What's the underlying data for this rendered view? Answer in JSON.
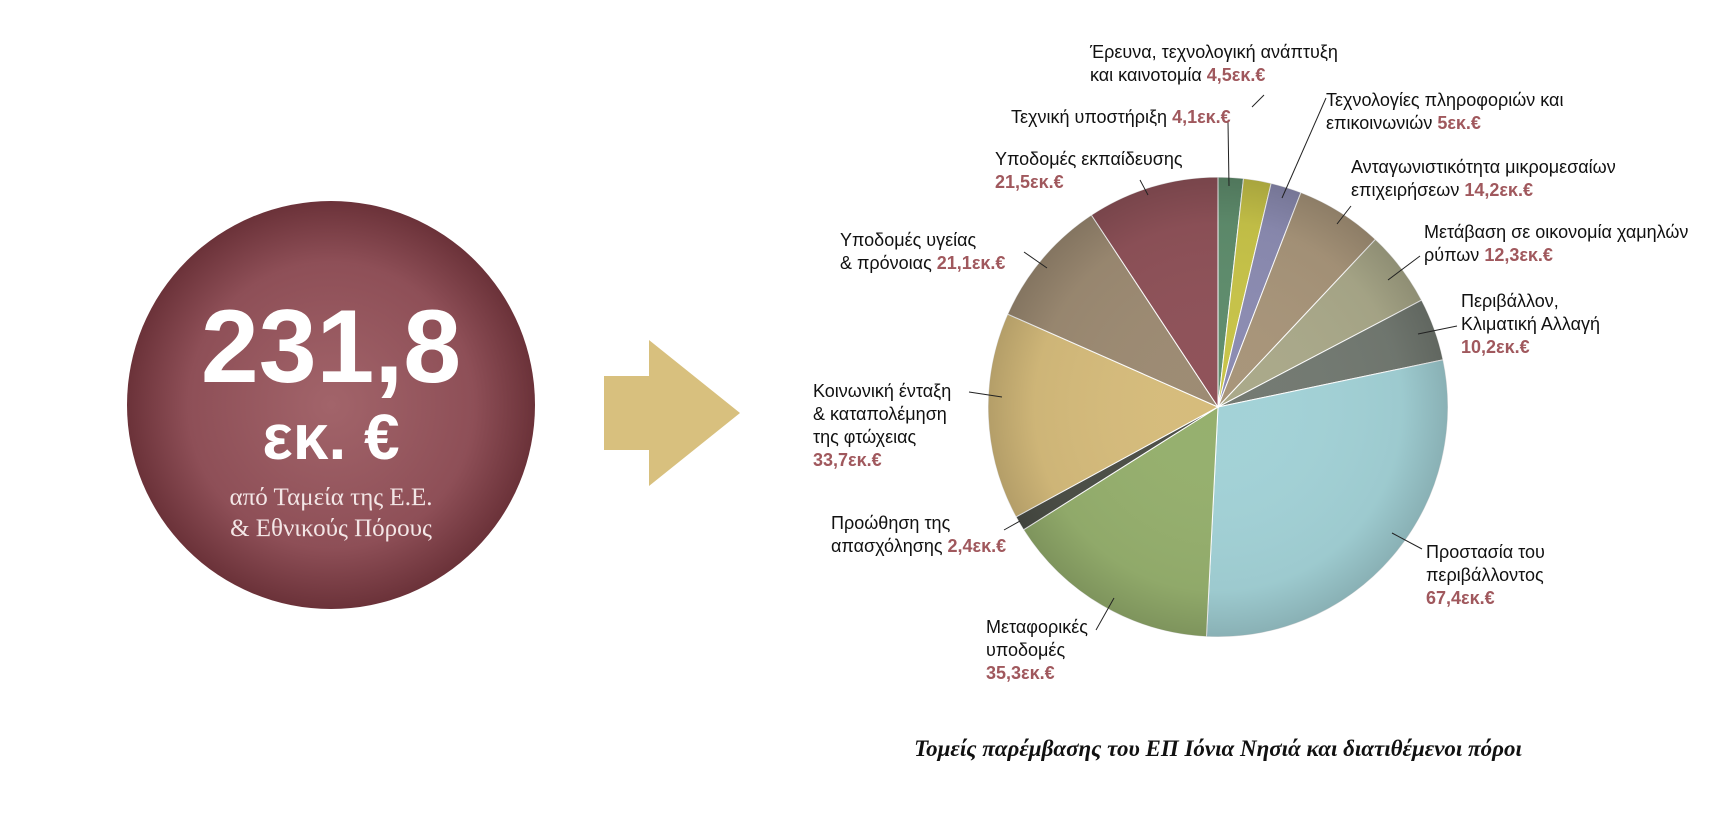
{
  "total": {
    "amount": "231,8",
    "unit": "εκ. €",
    "source_line1": "από Ταμεία της Ε.Ε.",
    "source_line2": "& Εθνικούς Πόρους",
    "circle_color": "#8a4a52"
  },
  "arrow": {
    "color": "#d8c07e"
  },
  "chart_data": {
    "type": "pie",
    "title": "Τομείς παρέμβασης του ΕΠ Ιόνια Νησιά και διατιθέμενοι πόροι",
    "unit": "εκ.€",
    "slices": [
      {
        "label_lines": [
          "Έρευνα, τεχνολογική ανάπτυξη",
          "και καινοτομία"
        ],
        "value_text": "4,5εκ.€",
        "value": 4.5,
        "color": "#c8c449"
      },
      {
        "label_lines": [
          "Τεχνολογίες πληροφοριών και",
          "επικοινωνιών"
        ],
        "value_text": "5εκ.€",
        "value": 5.0,
        "color": "#8c8cb2"
      },
      {
        "label_lines": [
          "Ανταγωνιστικότητα μικρομεσαίων",
          "επιχειρήσεων"
        ],
        "value_text": "14,2εκ.€",
        "value": 14.2,
        "color": "#a8957a"
      },
      {
        "label_lines": [
          "Μετάβαση σε οικονομία χαμηλών",
          "ρύπων"
        ],
        "value_text": "12,3εκ.€",
        "value": 12.3,
        "color": "#aaa98a"
      },
      {
        "label_lines": [
          "Περιβάλλον,",
          "Κλιματική Αλλαγή"
        ],
        "value_text": "10,2εκ.€",
        "value": 10.2,
        "color": "#737a72"
      },
      {
        "label_lines": [
          "Προστασία του",
          "περιβάλλοντος"
        ],
        "value_text": "67,4εκ.€",
        "value": 67.4,
        "color": "#a3d2d7"
      },
      {
        "label_lines": [
          "Μεταφορικές",
          "υποδομές"
        ],
        "value_text": "35,3εκ.€",
        "value": 35.3,
        "color": "#96b06e"
      },
      {
        "label_lines": [
          "Προώθηση της",
          "απασχόλησης"
        ],
        "value_text": "2,4εκ.€",
        "value": 2.4,
        "color": "#4d5048"
      },
      {
        "label_lines": [
          "Κοινωνική ένταξη",
          "& καταπολέμηση",
          "της φτώχειας"
        ],
        "value_text": "33,7εκ.€",
        "value": 33.7,
        "color": "#d6bc7c"
      },
      {
        "label_lines": [
          "Υποδομές υγείας",
          "& πρόνοιας"
        ],
        "value_text": "21,1εκ.€",
        "value": 21.1,
        "color": "#9d8b73"
      },
      {
        "label_lines": [
          "Υποδομές εκπαίδευσης"
        ],
        "value_text": "21,5εκ.€",
        "value": 21.5,
        "color": "#8f5259"
      },
      {
        "label_lines": [
          "Τεχνική υποστήριξη"
        ],
        "value_text": "4,1εκ.€",
        "value": 4.1,
        "color": "#5f8d6d"
      }
    ]
  }
}
